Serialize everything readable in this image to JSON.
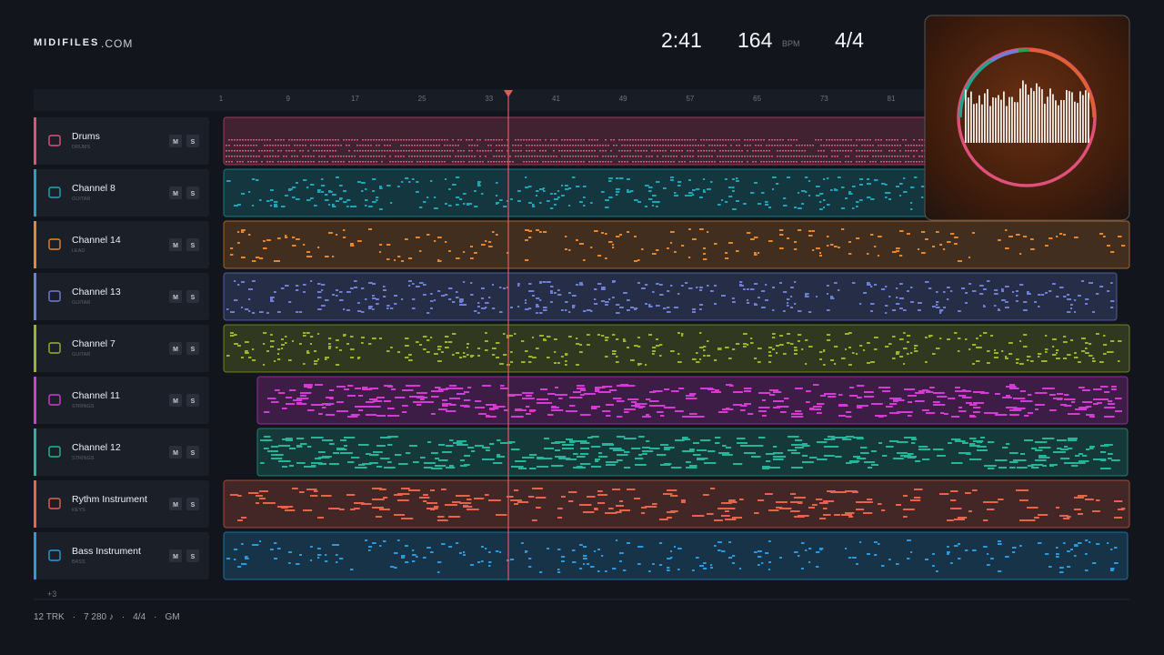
{
  "header": {
    "brand": "MIDIFILES",
    "brand_suffix": ".COM",
    "time": "2:41",
    "tempo": "164",
    "tempo_unit": "BPM",
    "meter": "4/4"
  },
  "ruler": [
    "1",
    "9",
    "17",
    "25",
    "33",
    "41",
    "49",
    "57",
    "65",
    "73",
    "81"
  ],
  "tracks": [
    {
      "name": "Drums",
      "kind": "DRUMS",
      "color": "#e0507a",
      "mute": "M",
      "solo": "S"
    },
    {
      "name": "Channel 8",
      "kind": "GUITAR",
      "color": "#1fa5b8",
      "mute": "M",
      "solo": "S"
    },
    {
      "name": "Channel 14",
      "kind": "LEAD",
      "color": "#e8862a",
      "mute": "M",
      "solo": "S"
    },
    {
      "name": "Channel 13",
      "kind": "GUITAR",
      "color": "#6f7fd8",
      "mute": "M",
      "solo": "S"
    },
    {
      "name": "Channel 7",
      "kind": "GUITAR",
      "color": "#9ab52a",
      "mute": "M",
      "solo": "S"
    },
    {
      "name": "Channel 11",
      "kind": "STRINGS",
      "color": "#d43ad4",
      "mute": "M",
      "solo": "S"
    },
    {
      "name": "Channel 12",
      "kind": "STRINGS",
      "color": "#25b59a",
      "mute": "M",
      "solo": "S"
    },
    {
      "name": "Rythm Instrument",
      "kind": "KEYS",
      "color": "#e8634a",
      "mute": "M",
      "solo": "S"
    },
    {
      "name": "Bass Instrument",
      "kind": "BASS",
      "color": "#2a9ae0",
      "mute": "M",
      "solo": "S"
    }
  ],
  "more": "+3",
  "footer": [
    "12 TRK",
    "·",
    "7 280 ♪",
    "·",
    "4/4",
    "·",
    "GM"
  ]
}
